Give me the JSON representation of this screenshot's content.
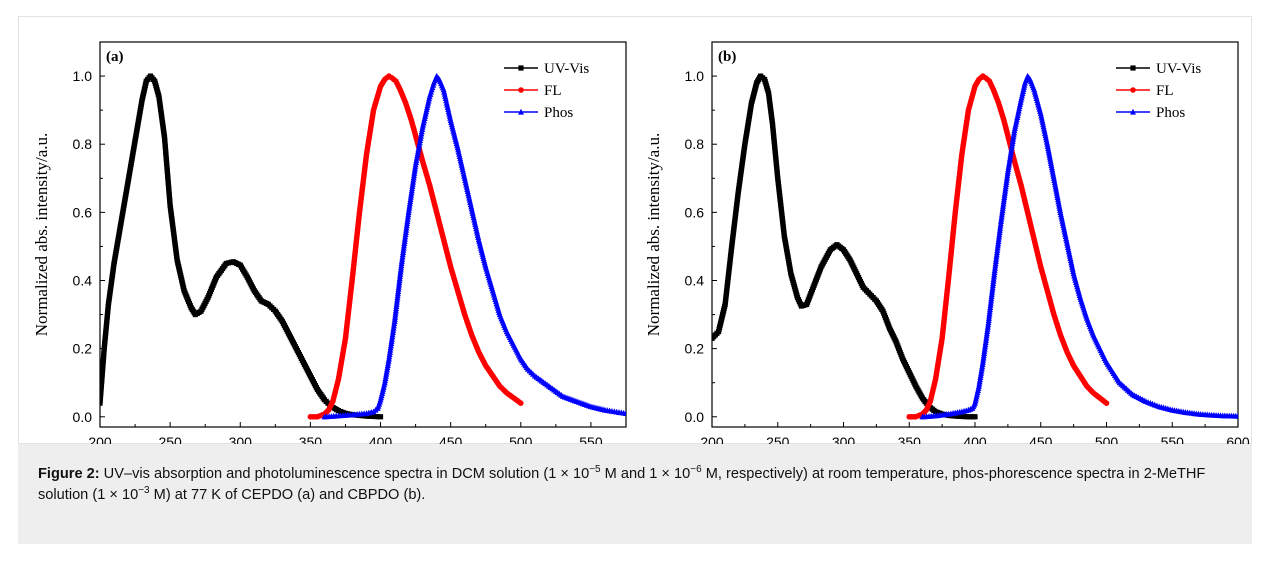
{
  "caption": {
    "label": "Figure 2:",
    "p1": " UV–vis absorption and photoluminescence spectra in DCM solution (1 × 10",
    "e1": "−5",
    "p2": " M and 1 × 10",
    "e2": "−6",
    "p3": " M, respectively) at room temperature, phos-phorescence spectra in 2-MeTHF solution (1 × 10",
    "e3": "−3",
    "p4": " M) at 77 K of CEPDO (a) and CBPDO (b)."
  },
  "colors": {
    "uvvis": "#000000",
    "fl": "#ff0000",
    "phos": "#0000ff"
  },
  "chart_data": [
    {
      "type": "line",
      "panel_label": "(a)",
      "xlabel": "Wavelength/nm",
      "ylabel": "Normalized abs. intensity/a.u.",
      "xlim": [
        200,
        575
      ],
      "ylim": [
        -0.03,
        1.1
      ],
      "xticks": [
        200,
        250,
        300,
        350,
        400,
        450,
        500,
        550
      ],
      "yticks": [
        0.0,
        0.2,
        0.4,
        0.6,
        0.8,
        1.0
      ],
      "grid": false,
      "legend_position": "top-right",
      "series": [
        {
          "name": "UV-Vis",
          "color": "#000000",
          "marker": "square",
          "x": [
            200,
            203,
            206,
            210,
            215,
            220,
            225,
            230,
            233,
            236,
            239,
            242,
            246,
            250,
            255,
            260,
            265,
            268,
            272,
            277,
            283,
            290,
            295,
            300,
            305,
            310,
            315,
            320,
            325,
            330,
            335,
            340,
            345,
            350,
            355,
            360,
            365,
            370,
            375,
            380,
            385,
            390,
            395,
            400
          ],
          "y": [
            0.04,
            0.2,
            0.33,
            0.45,
            0.57,
            0.69,
            0.81,
            0.93,
            0.985,
            1.0,
            0.985,
            0.94,
            0.82,
            0.62,
            0.46,
            0.37,
            0.32,
            0.3,
            0.31,
            0.35,
            0.41,
            0.45,
            0.455,
            0.445,
            0.41,
            0.37,
            0.34,
            0.33,
            0.31,
            0.28,
            0.24,
            0.2,
            0.16,
            0.12,
            0.08,
            0.05,
            0.03,
            0.018,
            0.01,
            0.006,
            0.004,
            0.002,
            0.001,
            0.0
          ]
        },
        {
          "name": "FL",
          "color": "#ff0000",
          "marker": "circle",
          "x": [
            350,
            355,
            360,
            363,
            366,
            370,
            375,
            380,
            385,
            390,
            395,
            400,
            403,
            406,
            408,
            411,
            414,
            418,
            422,
            426,
            430,
            435,
            440,
            445,
            450,
            455,
            460,
            465,
            470,
            475,
            480,
            485,
            490,
            495,
            500
          ],
          "y": [
            0.0,
            0.0,
            0.008,
            0.02,
            0.045,
            0.11,
            0.23,
            0.41,
            0.6,
            0.77,
            0.9,
            0.97,
            0.99,
            1.0,
            0.995,
            0.985,
            0.96,
            0.92,
            0.87,
            0.81,
            0.75,
            0.68,
            0.6,
            0.52,
            0.44,
            0.37,
            0.3,
            0.24,
            0.19,
            0.15,
            0.12,
            0.09,
            0.07,
            0.055,
            0.04
          ]
        },
        {
          "name": "Phos",
          "color": "#0000ff",
          "marker": "triangle",
          "x": [
            360,
            370,
            380,
            390,
            395,
            398,
            400,
            403,
            406,
            410,
            415,
            420,
            425,
            430,
            435,
            438,
            440,
            442,
            445,
            450,
            455,
            460,
            465,
            470,
            475,
            480,
            485,
            490,
            495,
            500,
            505,
            510,
            515,
            520,
            525,
            530,
            540,
            550,
            560,
            570,
            575
          ],
          "y": [
            0.0,
            0.003,
            0.006,
            0.01,
            0.015,
            0.025,
            0.05,
            0.1,
            0.17,
            0.28,
            0.45,
            0.6,
            0.74,
            0.85,
            0.94,
            0.98,
            1.0,
            0.99,
            0.96,
            0.87,
            0.79,
            0.7,
            0.61,
            0.52,
            0.44,
            0.37,
            0.3,
            0.25,
            0.21,
            0.17,
            0.14,
            0.12,
            0.105,
            0.09,
            0.075,
            0.06,
            0.045,
            0.03,
            0.02,
            0.013,
            0.01
          ]
        }
      ]
    },
    {
      "type": "line",
      "panel_label": "(b)",
      "xlabel": "Wavelength/nm",
      "ylabel": "Normalized abs. intensity/a.u.",
      "xlim": [
        200,
        600
      ],
      "ylim": [
        -0.03,
        1.1
      ],
      "xticks": [
        200,
        250,
        300,
        350,
        400,
        450,
        500,
        550,
        600
      ],
      "yticks": [
        0.0,
        0.2,
        0.4,
        0.6,
        0.8,
        1.0
      ],
      "grid": false,
      "legend_position": "top-right",
      "series": [
        {
          "name": "UV-Vis",
          "color": "#000000",
          "marker": "square",
          "x": [
            200,
            205,
            210,
            215,
            220,
            225,
            230,
            234,
            237,
            240,
            243,
            246,
            250,
            255,
            260,
            265,
            268,
            272,
            277,
            283,
            290,
            295,
            300,
            305,
            310,
            315,
            320,
            325,
            330,
            335,
            340,
            345,
            350,
            355,
            360,
            365,
            370,
            375,
            380,
            385,
            390,
            395,
            400
          ],
          "y": [
            0.23,
            0.25,
            0.33,
            0.5,
            0.66,
            0.8,
            0.92,
            0.98,
            1.0,
            0.99,
            0.95,
            0.86,
            0.7,
            0.53,
            0.42,
            0.35,
            0.325,
            0.33,
            0.38,
            0.44,
            0.49,
            0.505,
            0.49,
            0.46,
            0.42,
            0.38,
            0.36,
            0.34,
            0.31,
            0.26,
            0.22,
            0.17,
            0.13,
            0.09,
            0.055,
            0.03,
            0.015,
            0.008,
            0.004,
            0.002,
            0.001,
            0.0,
            0.0
          ]
        },
        {
          "name": "FL",
          "color": "#ff0000",
          "marker": "circle",
          "x": [
            350,
            355,
            360,
            363,
            366,
            370,
            375,
            380,
            385,
            390,
            395,
            400,
            403,
            406,
            408,
            411,
            414,
            418,
            422,
            426,
            430,
            435,
            440,
            445,
            450,
            455,
            460,
            465,
            470,
            475,
            480,
            485,
            490,
            495,
            500
          ],
          "y": [
            0.0,
            0.0,
            0.008,
            0.02,
            0.045,
            0.11,
            0.23,
            0.41,
            0.6,
            0.77,
            0.9,
            0.97,
            0.99,
            1.0,
            0.995,
            0.985,
            0.96,
            0.92,
            0.87,
            0.81,
            0.75,
            0.68,
            0.6,
            0.52,
            0.44,
            0.37,
            0.3,
            0.24,
            0.19,
            0.15,
            0.12,
            0.09,
            0.07,
            0.055,
            0.04
          ]
        },
        {
          "name": "Phos",
          "color": "#0000ff",
          "marker": "triangle",
          "x": [
            360,
            370,
            380,
            390,
            395,
            398,
            400,
            403,
            406,
            410,
            415,
            420,
            425,
            430,
            435,
            438,
            440,
            442,
            445,
            450,
            455,
            460,
            465,
            470,
            475,
            480,
            485,
            490,
            495,
            500,
            510,
            520,
            530,
            540,
            550,
            560,
            570,
            580,
            590,
            600
          ],
          "y": [
            0.0,
            0.003,
            0.008,
            0.015,
            0.02,
            0.025,
            0.04,
            0.09,
            0.16,
            0.27,
            0.43,
            0.58,
            0.72,
            0.84,
            0.93,
            0.98,
            1.0,
            0.99,
            0.96,
            0.89,
            0.8,
            0.7,
            0.6,
            0.51,
            0.42,
            0.35,
            0.29,
            0.24,
            0.2,
            0.16,
            0.1,
            0.065,
            0.045,
            0.03,
            0.02,
            0.013,
            0.008,
            0.005,
            0.003,
            0.002
          ]
        }
      ]
    }
  ]
}
